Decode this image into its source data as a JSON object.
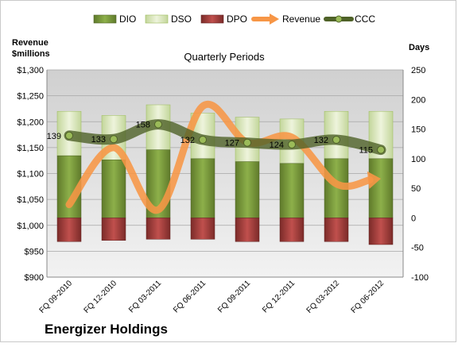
{
  "chart_data": {
    "type": "bar",
    "title": "Quarterly Periods",
    "company": "Energizer Holdings",
    "left_axis": {
      "label_line1": "Revenue",
      "label_line2": "$millions",
      "ylim": [
        900,
        1300
      ],
      "ticks": [
        900,
        950,
        1000,
        1050,
        1100,
        1150,
        1200,
        1250,
        1300
      ],
      "tick_labels": [
        "$900",
        "$950",
        "$1,000",
        "$1,050",
        "$1,100",
        "$1,150",
        "$1,200",
        "$1,250",
        "$1,300"
      ]
    },
    "right_axis": {
      "label": "Days",
      "ylim": [
        -100,
        250
      ],
      "ticks": [
        -100,
        -50,
        0,
        50,
        100,
        150,
        200,
        250
      ],
      "tick_labels": [
        "-100",
        "-50",
        "0",
        "50",
        "100",
        "150",
        "200",
        "250"
      ]
    },
    "categories": [
      "FQ 09-2010",
      "FQ 12-2010",
      "FQ 03-2011",
      "FQ 06-2011",
      "FQ 09-2011",
      "FQ 12-2011",
      "FQ 03-2012",
      "FQ 06-2012"
    ],
    "legend": [
      "DIO",
      "DSO",
      "DPO",
      "Revenue",
      "CCC"
    ],
    "series": [
      {
        "name": "DIO",
        "axis": "right",
        "kind": "bar",
        "values": [
          105,
          98,
          115,
          100,
          95,
          92,
          100,
          100
        ]
      },
      {
        "name": "DSO",
        "axis": "right",
        "kind": "bar",
        "values": [
          75,
          75,
          76,
          77,
          75,
          75,
          80,
          80
        ]
      },
      {
        "name": "DPO",
        "axis": "right",
        "kind": "bar",
        "values": [
          -40,
          -38,
          -36,
          -36,
          -40,
          -40,
          -40,
          -45
        ]
      },
      {
        "name": "Revenue",
        "axis": "left",
        "kind": "line",
        "values": [
          1040,
          1150,
          1030,
          1230,
          1160,
          1170,
          1080,
          1090
        ]
      },
      {
        "name": "CCC",
        "axis": "right",
        "kind": "line",
        "values": [
          139,
          133,
          158,
          132,
          127,
          124,
          132,
          115
        ]
      }
    ],
    "ccc_labels": [
      "139",
      "133",
      "158",
      "132",
      "127",
      "124",
      "132",
      "115"
    ],
    "colors": {
      "DIO": "#77933c",
      "DSO": "#d7e4bd",
      "DPO": "#953735",
      "Revenue": "#f79646",
      "CCC": "#4f6228",
      "plot_bg": "#d9d9d9"
    },
    "grid": true,
    "legend_position": "top"
  }
}
